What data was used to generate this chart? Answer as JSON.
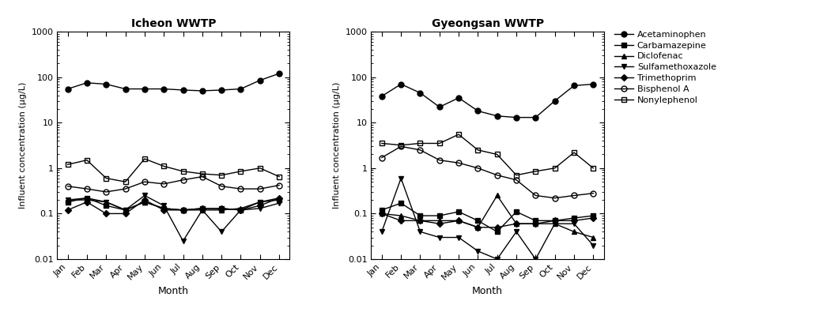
{
  "months": [
    "Jan",
    "Feb",
    "Mar",
    "Apr",
    "May",
    "Jun",
    "Jul",
    "Aug",
    "Sep",
    "Oct",
    "Nov",
    "Dec"
  ],
  "icheon": {
    "Acetaminophen": [
      55,
      75,
      70,
      55,
      55,
      55,
      52,
      50,
      52,
      55,
      85,
      120
    ],
    "Carbamazepine": [
      0.18,
      0.22,
      0.15,
      0.12,
      0.18,
      0.13,
      0.12,
      0.13,
      0.13,
      0.12,
      0.18,
      0.2
    ],
    "Diclofenac": [
      0.2,
      0.22,
      0.18,
      0.12,
      0.18,
      0.13,
      0.12,
      0.12,
      0.12,
      0.13,
      0.18,
      0.22
    ],
    "Sulfamethoxazole": [
      0.2,
      0.2,
      0.18,
      0.12,
      0.25,
      0.15,
      0.025,
      0.12,
      0.04,
      0.12,
      0.13,
      0.17
    ],
    "Trimethoprim": [
      0.12,
      0.18,
      0.1,
      0.1,
      0.2,
      0.12,
      0.12,
      0.13,
      0.13,
      0.12,
      0.15,
      0.22
    ],
    "Bisphenol A": [
      0.4,
      0.35,
      0.3,
      0.35,
      0.5,
      0.45,
      0.55,
      0.65,
      0.4,
      0.35,
      0.35,
      0.42
    ],
    "Nonylephenol": [
      1.2,
      1.5,
      0.6,
      0.5,
      1.6,
      1.1,
      0.85,
      0.75,
      0.7,
      0.85,
      1.0,
      0.65
    ]
  },
  "gyeongsan": {
    "Acetaminophen": [
      38,
      70,
      45,
      22,
      35,
      18,
      14,
      13,
      13,
      30,
      65,
      70
    ],
    "Carbamazepine": [
      0.12,
      0.17,
      0.09,
      0.09,
      0.11,
      0.07,
      0.04,
      0.11,
      0.07,
      0.07,
      0.08,
      0.09
    ],
    "Diclofenac": [
      0.1,
      0.09,
      0.07,
      0.07,
      0.07,
      0.05,
      0.25,
      0.06,
      0.06,
      0.06,
      0.04,
      0.03
    ],
    "Sulfamethoxazole": [
      0.04,
      0.6,
      0.04,
      0.03,
      0.03,
      0.015,
      0.01,
      0.04,
      0.01,
      0.06,
      0.06,
      0.02
    ],
    "Trimethoprim": [
      0.1,
      0.07,
      0.07,
      0.06,
      0.07,
      0.05,
      0.05,
      0.06,
      0.06,
      0.07,
      0.07,
      0.08
    ],
    "Bisphenol A": [
      1.7,
      3.0,
      2.5,
      1.5,
      1.3,
      1.0,
      0.7,
      0.55,
      0.25,
      0.22,
      0.25,
      0.28
    ],
    "Nonylephenol": [
      3.5,
      3.2,
      3.5,
      3.5,
      5.5,
      2.5,
      2.0,
      0.7,
      0.85,
      1.0,
      2.2,
      1.0
    ]
  },
  "series_styles": {
    "Acetaminophen": {
      "marker": "o",
      "fillstyle": "full",
      "color": "#000000",
      "markersize": 5,
      "linewidth": 1.0
    },
    "Carbamazepine": {
      "marker": "s",
      "fillstyle": "full",
      "color": "#000000",
      "markersize": 5,
      "linewidth": 1.0
    },
    "Diclofenac": {
      "marker": "^",
      "fillstyle": "full",
      "color": "#000000",
      "markersize": 5,
      "linewidth": 1.0
    },
    "Sulfamethoxazole": {
      "marker": "v",
      "fillstyle": "full",
      "color": "#000000",
      "markersize": 5,
      "linewidth": 1.0
    },
    "Trimethoprim": {
      "marker": "D",
      "fillstyle": "full",
      "color": "#000000",
      "markersize": 4,
      "linewidth": 1.0
    },
    "Bisphenol A": {
      "marker": "o",
      "fillstyle": "none",
      "color": "#000000",
      "markersize": 5,
      "linewidth": 1.0
    },
    "Nonylephenol": {
      "marker": "s",
      "fillstyle": "none",
      "color": "#000000",
      "markersize": 5,
      "linewidth": 1.0
    }
  },
  "ylim": [
    0.01,
    1000
  ],
  "ytick_vals": [
    0.01,
    0.1,
    1,
    10,
    100,
    1000
  ],
  "ytick_labels": [
    "0.01",
    "0.1",
    "1",
    "10",
    "100",
    "1000"
  ],
  "title_left": "Icheon WWTP",
  "title_right": "Gyeongsan WWTP",
  "ylabel": "Influent concentration (μg/L)",
  "xlabel": "Month",
  "legend_order": [
    "Acetaminophen",
    "Carbamazepine",
    "Diclofenac",
    "Sulfamethoxazole",
    "Trimethoprim",
    "Bisphenol A",
    "Nonylephenol"
  ]
}
